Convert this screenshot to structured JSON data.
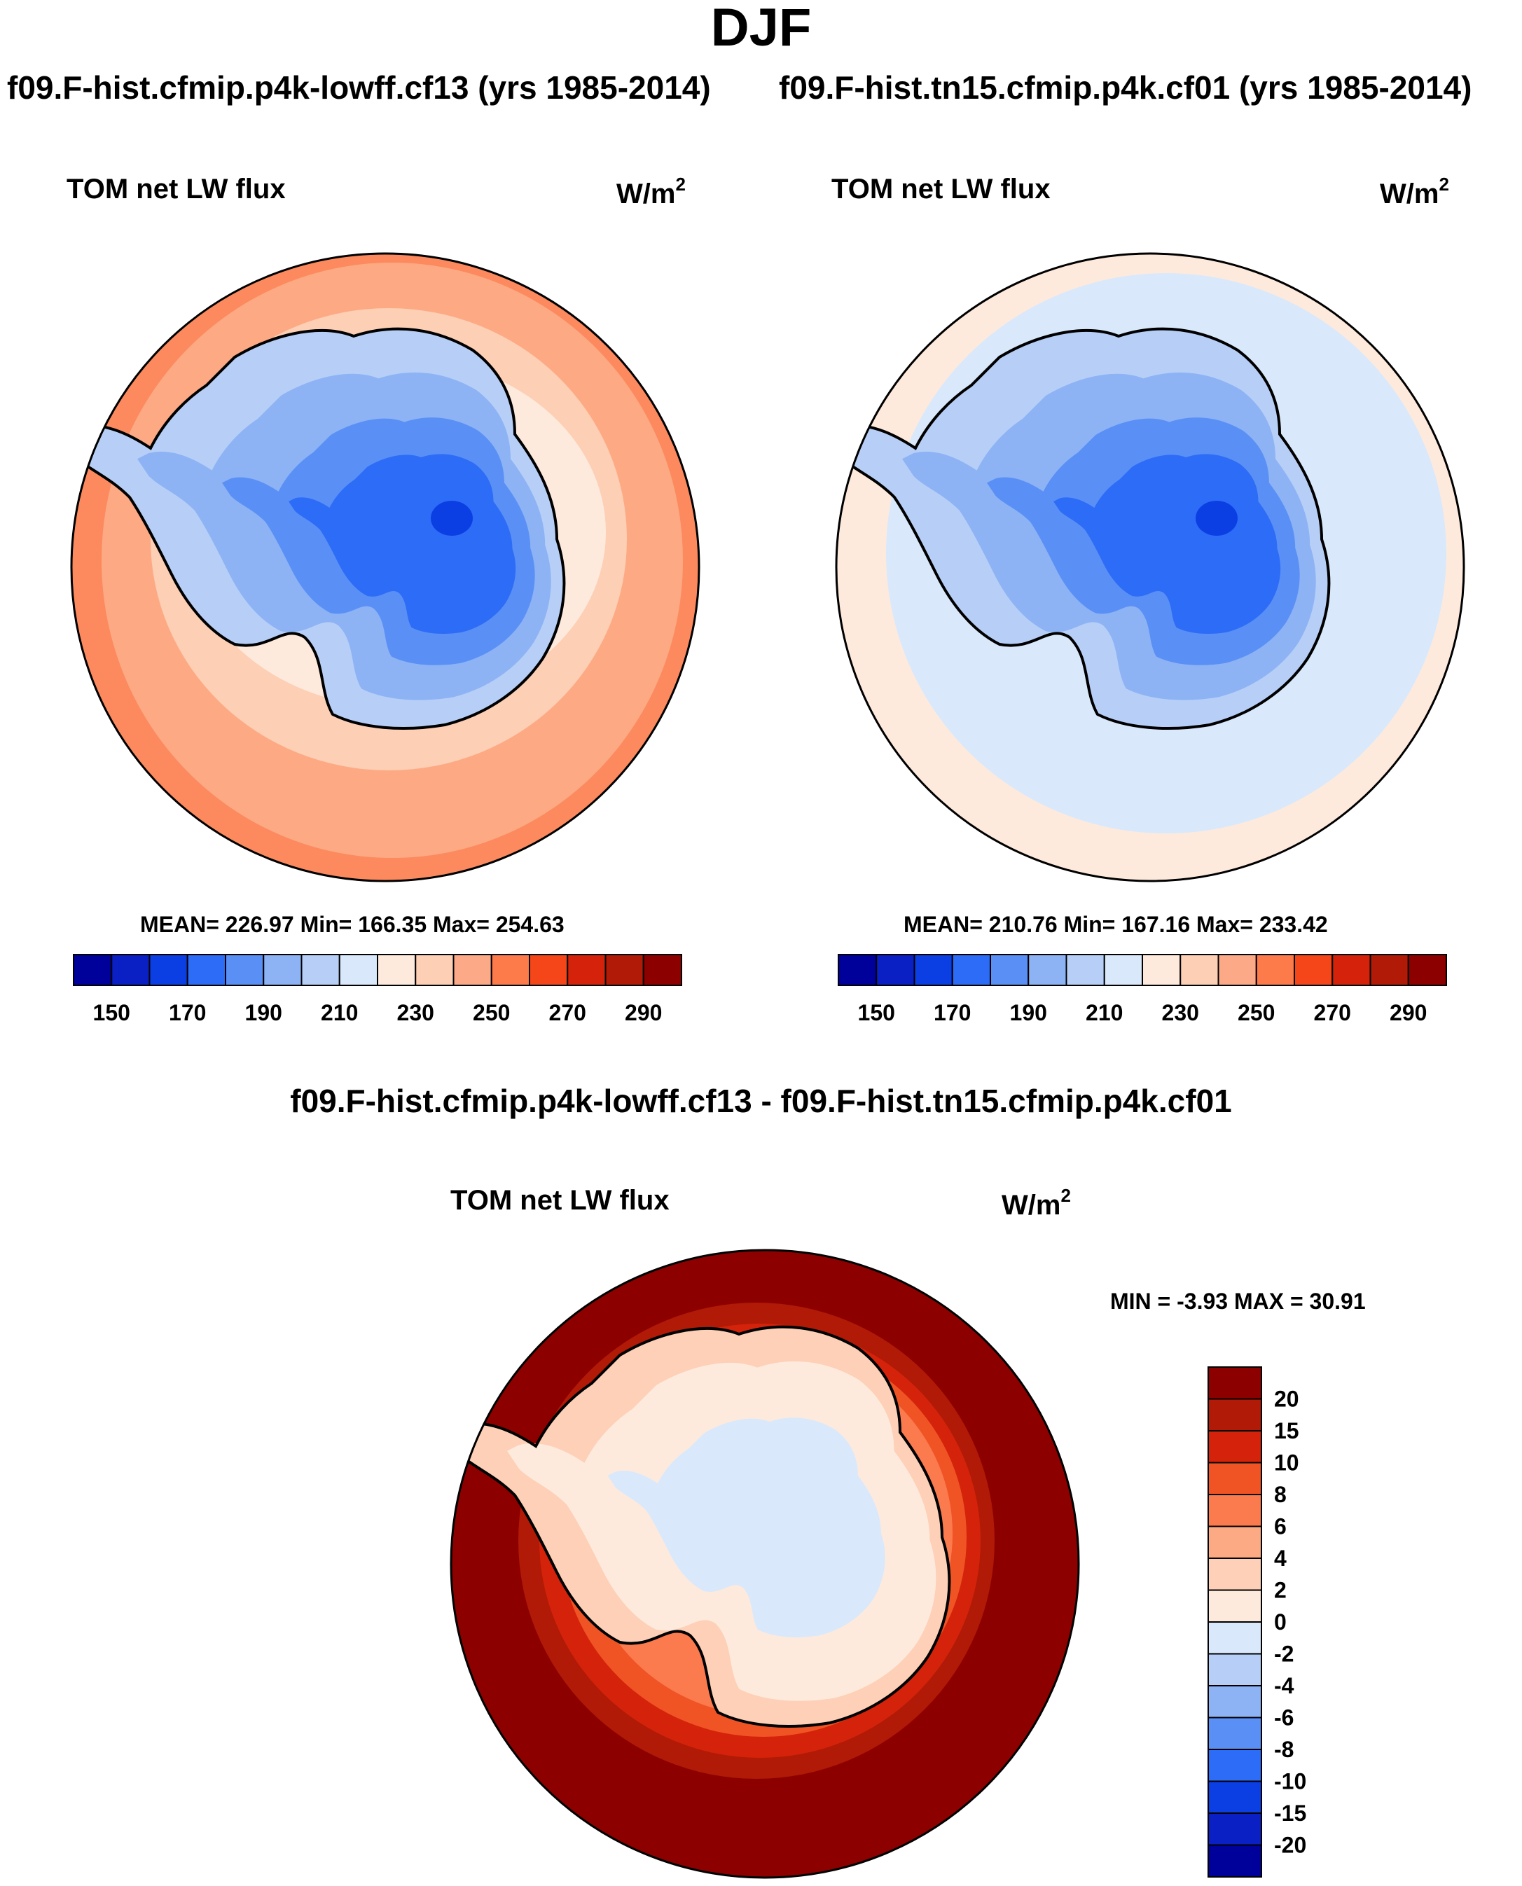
{
  "main_title": "DJF",
  "panels": [
    {
      "run_title": "f09.F-hist.cfmip.p4k-lowff.cf13 (yrs 1985-2014)",
      "variable": "TOM net LW flux",
      "units": "W/m",
      "units_exp": "2",
      "stats": "MEAN= 226.97  Min= 166.35  Max= 254.63",
      "ocean_color": "#fdaa84"
    },
    {
      "run_title": "f09.F-hist.tn15.cfmip.p4k.cf01 (yrs 1985-2014)",
      "variable": "TOM net LW flux",
      "units": "W/m",
      "units_exp": "2",
      "stats": "MEAN= 210.76  Min= 167.16  Max= 233.42",
      "ocean_color": "#d6e8fb"
    }
  ],
  "difference": {
    "title": "f09.F-hist.cfmip.p4k-lowff.cf13 - f09.F-hist.tn15.cfmip.p4k.cf01",
    "variable": "TOM net LW flux",
    "units": "W/m",
    "units_exp": "2",
    "stats": "MIN =  -3.93 MAX =  30.91"
  },
  "colorbar_abs": {
    "colors": [
      "#00009a",
      "#0a1fc4",
      "#0b3fe4",
      "#2d6cf7",
      "#5a90f5",
      "#8db3f5",
      "#b7cff7",
      "#d9e9fb",
      "#feeadc",
      "#fdcfb5",
      "#fca987",
      "#fd7a4a",
      "#f44619",
      "#d4230a",
      "#b01a06",
      "#8c0000"
    ],
    "labels": [
      "150",
      "170",
      "190",
      "210",
      "230",
      "250",
      "270",
      "290"
    ]
  },
  "colorbar_diff": {
    "colors": [
      "#8c0000",
      "#b01a06",
      "#d4230a",
      "#f05425",
      "#fc7b4e",
      "#fcaa84",
      "#fdd0b7",
      "#feeadc",
      "#d9e9fb",
      "#b7cff7",
      "#8db3f5",
      "#5a90f5",
      "#2d6cf7",
      "#0b3fe4",
      "#0a1fc4",
      "#00009a"
    ],
    "labels": [
      "20",
      "15",
      "10",
      "8",
      "6",
      "4",
      "2",
      "0",
      "-2",
      "-4",
      "-6",
      "-8",
      "-10",
      "-15",
      "-20"
    ]
  }
}
